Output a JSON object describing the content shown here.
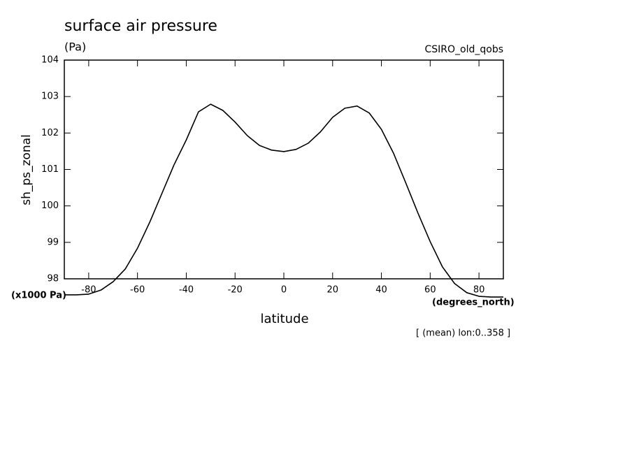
{
  "chart_data": {
    "type": "line",
    "title": "surface air pressure",
    "units": "(Pa)",
    "dataset": "CSIRO_old_qobs",
    "y_label": "sh_ps_zonal",
    "y_units": "(x1000 Pa)",
    "x_label": "latitude",
    "x_units": "(degrees_north)",
    "footnote": "[ (mean) lon:0..358 ]",
    "x": [
      -90,
      -85,
      -80,
      -75,
      -70,
      -65,
      -60,
      -55,
      -50,
      -45,
      -40,
      -35,
      -30,
      -25,
      -20,
      -15,
      -10,
      -5,
      0,
      5,
      10,
      15,
      20,
      25,
      30,
      35,
      40,
      45,
      50,
      55,
      60,
      65,
      70,
      75,
      80,
      85,
      90
    ],
    "series": [
      {
        "color": "#000000",
        "values": [
          97.56,
          97.56,
          97.58,
          97.69,
          97.92,
          98.27,
          98.84,
          99.55,
          100.34,
          101.13,
          101.81,
          102.58,
          102.79,
          102.62,
          102.3,
          101.93,
          101.66,
          101.53,
          101.49,
          101.55,
          101.72,
          102.03,
          102.43,
          102.68,
          102.74,
          102.55,
          102.1,
          101.44,
          100.63,
          99.8,
          99.02,
          98.33,
          97.87,
          97.62,
          97.52,
          97.5,
          97.5
        ]
      }
    ],
    "xlim": [
      -90,
      90
    ],
    "ylim": [
      98,
      104
    ],
    "xticks": [
      -80,
      -60,
      -40,
      -20,
      0,
      20,
      40,
      60,
      80
    ],
    "yticks": [
      98,
      99,
      100,
      101,
      102,
      103,
      104
    ]
  }
}
